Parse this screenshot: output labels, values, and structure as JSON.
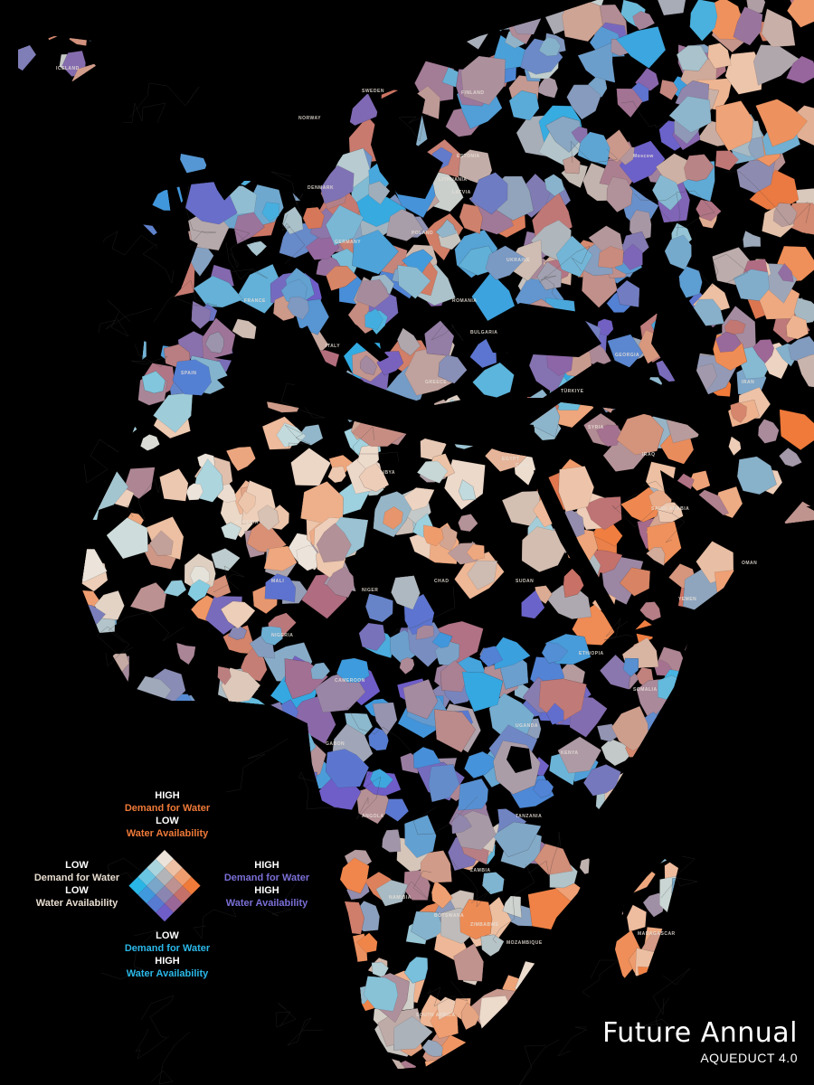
{
  "title": "Future Annual",
  "subtitle": "AQUEDUCT 4.0",
  "legend": {
    "top": {
      "level1": "HIGH",
      "label1": "Demand for Water",
      "level2": "LOW",
      "label2": "Water Availability",
      "color": "#f07a3a"
    },
    "left": {
      "level1": "LOW",
      "label1": "Demand for Water",
      "level2": "LOW",
      "label2": "Water Availability",
      "color": "#e8ddd0"
    },
    "right": {
      "level1": "HIGH",
      "label1": "Demand for Water",
      "level2": "HIGH",
      "label2": "Water Availability",
      "color": "#7a6fd6"
    },
    "bottom": {
      "level1": "LOW",
      "label1": "Demand for Water",
      "level2": "HIGH",
      "label2": "Water Availability",
      "color": "#2bb8e8"
    }
  },
  "colors": {
    "ocean": "#000000",
    "high_demand_low_avail": "#f07a3a",
    "low_demand_low_avail": "#ece4da",
    "high_demand_high_avail": "#6f5ec8",
    "low_demand_high_avail": "#29b6e6",
    "mid": "#c0826a"
  },
  "places": [
    "ICELAND",
    "NORWAY",
    "SWEDEN",
    "FINLAND",
    "ESTONIA",
    "LATVIA",
    "LITHUANIA",
    "DENMARK",
    "POLAND",
    "GERMANY",
    "FRANCE",
    "SPAIN",
    "ITALY",
    "UKRAINE",
    "ROMANIA",
    "BULGARIA",
    "GREECE",
    "TÜRKIYE",
    "GEORGIA",
    "SYRIA",
    "IRAQ",
    "EGYPT",
    "LIBYA",
    "ALGERIA",
    "MALI",
    "NIGER",
    "CHAD",
    "SUDAN",
    "ETHIOPIA",
    "KENYA",
    "TANZANIA",
    "ANGOLA",
    "ZAMBIA",
    "NAMIBIA",
    "BOTSWANA",
    "MADAGASCAR",
    "SAUDI ARABIA",
    "YEMEN",
    "OMAN",
    "IRAN",
    "NIGERIA",
    "CAMEROON",
    "GABON",
    "UGANDA",
    "SOMALIA",
    "SOUTH AFRICA",
    "MOZAMBIQUE",
    "ZIMBABWE",
    "Cairo",
    "Moscow"
  ]
}
